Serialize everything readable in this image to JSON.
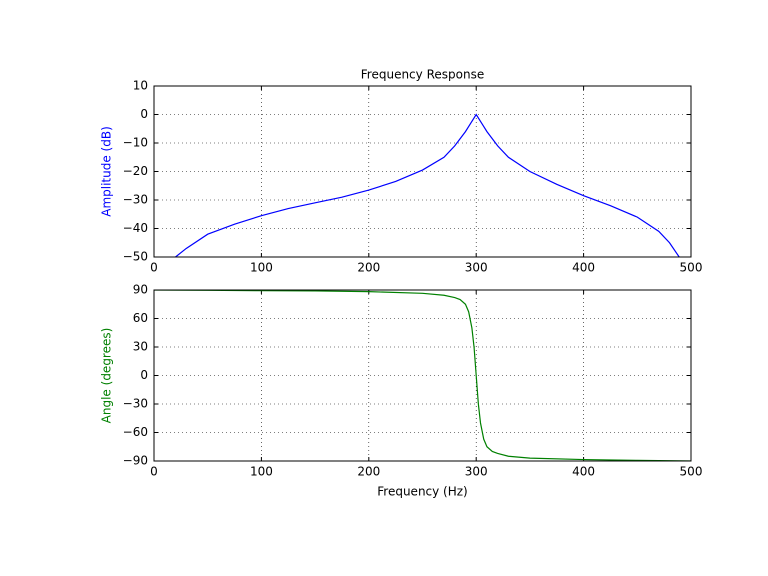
{
  "chart_data": [
    {
      "type": "line",
      "title": "Frequency Response",
      "ylabel": "Amplitude (dB)",
      "color": "#0000ff",
      "grid": true,
      "x": [
        20,
        30,
        50,
        75,
        100,
        125,
        150,
        175,
        200,
        225,
        250,
        270,
        280,
        290,
        295,
        300,
        305,
        310,
        320,
        330,
        350,
        375,
        400,
        425,
        450,
        470,
        480,
        489
      ],
      "values": [
        -50,
        -47,
        -42,
        -38.5,
        -35.5,
        -33,
        -31,
        -29,
        -26.5,
        -23.5,
        -19.5,
        -15,
        -11,
        -6,
        -3,
        0,
        -3,
        -6,
        -11,
        -15,
        -20,
        -24.5,
        -28.5,
        -32,
        -36,
        -41,
        -45,
        -50
      ],
      "xlim": [
        0,
        500
      ],
      "xticks": [
        0,
        100,
        200,
        300,
        400,
        500
      ],
      "ylim": [
        -50,
        10
      ],
      "yticks": [
        {
          "value": -50,
          "label": "−50"
        },
        {
          "value": -40,
          "label": "−40"
        },
        {
          "value": -30,
          "label": "−30"
        },
        {
          "value": -20,
          "label": "−20"
        },
        {
          "value": -10,
          "label": "−10"
        },
        0,
        10
      ]
    },
    {
      "type": "line",
      "xlabel": "Frequency (Hz)",
      "ylabel": "Angle (degrees)",
      "color": "#008000",
      "grid": true,
      "x": [
        0,
        50,
        100,
        150,
        200,
        250,
        270,
        280,
        285,
        290,
        293,
        296,
        298,
        300,
        302,
        304,
        307,
        310,
        315,
        320,
        330,
        350,
        400,
        450,
        500
      ],
      "values": [
        90,
        89.7,
        89.3,
        89,
        88.3,
        86.5,
        84.5,
        82,
        80,
        75,
        67,
        50,
        30,
        0,
        -30,
        -50,
        -67,
        -75,
        -80,
        -82,
        -85,
        -87,
        -88.5,
        -89.3,
        -90
      ],
      "xlim": [
        0,
        500
      ],
      "xticks": [
        0,
        100,
        200,
        300,
        400,
        500
      ],
      "ylim": [
        -90,
        90
      ],
      "yticks": [
        {
          "value": -90,
          "label": "−90"
        },
        {
          "value": -60,
          "label": "−60"
        },
        {
          "value": -30,
          "label": "−30"
        },
        0,
        30,
        60,
        90
      ]
    }
  ]
}
